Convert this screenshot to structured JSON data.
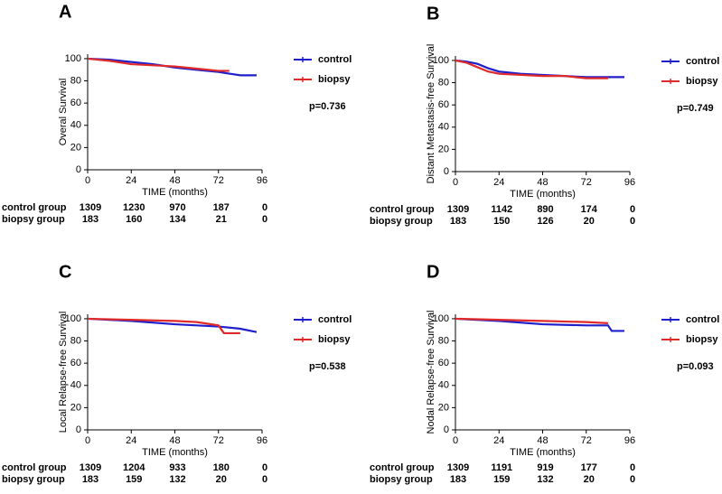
{
  "chart_data": [
    {
      "type": "line",
      "title": "A",
      "ylabel": "Overal Survival",
      "xlabel": "TIME (months)",
      "xlim": [
        0,
        96
      ],
      "xticks": [
        0,
        24,
        48,
        72,
        96
      ],
      "ylim": [
        0,
        104
      ],
      "yticks": [
        0,
        20,
        40,
        60,
        80,
        100
      ],
      "annotation": "p=0.736",
      "series": [
        {
          "name": "control",
          "color": "#1f1fcc",
          "x": [
            0,
            12,
            24,
            36,
            48,
            60,
            72,
            84,
            93
          ],
          "values": [
            100,
            99,
            97,
            95,
            92,
            90,
            88,
            85,
            85
          ]
        },
        {
          "name": "biopsy",
          "color": "#e02a2a",
          "x": [
            0,
            12,
            24,
            36,
            48,
            60,
            72,
            78
          ],
          "values": [
            100,
            98,
            95,
            94,
            93,
            91,
            89,
            89
          ]
        }
      ],
      "risk_table": [
        {
          "label": "control group",
          "values": [
            1309,
            1230,
            970,
            187,
            0
          ]
        },
        {
          "label": "biopsy group",
          "values": [
            183,
            160,
            134,
            21,
            0
          ]
        }
      ]
    },
    {
      "type": "line",
      "title": "B",
      "ylabel": "Distant Metastasis-free Survival",
      "xlabel": "TIME (months)",
      "xlim": [
        0,
        96
      ],
      "xticks": [
        0,
        24,
        48,
        72,
        96
      ],
      "ylim": [
        0,
        104
      ],
      "yticks": [
        0,
        20,
        40,
        60,
        80,
        100
      ],
      "annotation": "p=0.749",
      "series": [
        {
          "name": "control",
          "color": "#1f1fcc",
          "x": [
            0,
            6,
            12,
            18,
            24,
            36,
            48,
            60,
            72,
            84,
            93
          ],
          "values": [
            100,
            99,
            97,
            93,
            90,
            88,
            87,
            86,
            85,
            85,
            85
          ]
        },
        {
          "name": "biopsy",
          "color": "#e02a2a",
          "x": [
            0,
            6,
            12,
            18,
            24,
            36,
            48,
            60,
            72,
            84
          ],
          "values": [
            100,
            98,
            94,
            90,
            88,
            87,
            86,
            86,
            84,
            84
          ]
        }
      ],
      "risk_table": [
        {
          "label": "control group",
          "values": [
            1309,
            1142,
            890,
            174,
            0
          ]
        },
        {
          "label": "biopsy group",
          "values": [
            183,
            150,
            126,
            20,
            0
          ]
        }
      ]
    },
    {
      "type": "line",
      "title": "C",
      "ylabel": "Local Relapse-free Survival",
      "xlabel": "TIME (months)",
      "xlim": [
        0,
        96
      ],
      "xticks": [
        0,
        24,
        48,
        72,
        96
      ],
      "ylim": [
        0,
        104
      ],
      "yticks": [
        0,
        20,
        40,
        60,
        80,
        100
      ],
      "annotation": "p=0.538",
      "series": [
        {
          "name": "control",
          "color": "#1f1fcc",
          "x": [
            0,
            24,
            48,
            72,
            84,
            93
          ],
          "values": [
            100,
            98,
            95,
            93,
            91,
            88
          ]
        },
        {
          "name": "biopsy",
          "color": "#e02a2a",
          "x": [
            0,
            24,
            48,
            60,
            72,
            75,
            84
          ],
          "values": [
            100,
            99,
            98,
            97,
            94,
            87,
            87
          ]
        }
      ],
      "risk_table": [
        {
          "label": "control group",
          "values": [
            1309,
            1204,
            933,
            180,
            0
          ]
        },
        {
          "label": "biopsy group",
          "values": [
            183,
            159,
            132,
            20,
            0
          ]
        }
      ]
    },
    {
      "type": "line",
      "title": "D",
      "ylabel": "Nodal Relapse-free Survival",
      "xlabel": "TIME (months)",
      "xlim": [
        0,
        96
      ],
      "xticks": [
        0,
        24,
        48,
        72,
        96
      ],
      "ylim": [
        0,
        104
      ],
      "yticks": [
        0,
        20,
        40,
        60,
        80,
        100
      ],
      "annotation": "p=0.093",
      "series": [
        {
          "name": "control",
          "color": "#1f1fcc",
          "x": [
            0,
            24,
            48,
            72,
            84,
            86,
            93
          ],
          "values": [
            100,
            98,
            95,
            94,
            94,
            89,
            89
          ]
        },
        {
          "name": "biopsy",
          "color": "#e02a2a",
          "x": [
            0,
            24,
            48,
            72,
            84
          ],
          "values": [
            100,
            99,
            98,
            97,
            96
          ]
        }
      ],
      "risk_table": [
        {
          "label": "control group",
          "values": [
            1309,
            1191,
            919,
            177,
            0
          ]
        },
        {
          "label": "biopsy group",
          "values": [
            183,
            159,
            132,
            20,
            0
          ]
        }
      ]
    }
  ]
}
